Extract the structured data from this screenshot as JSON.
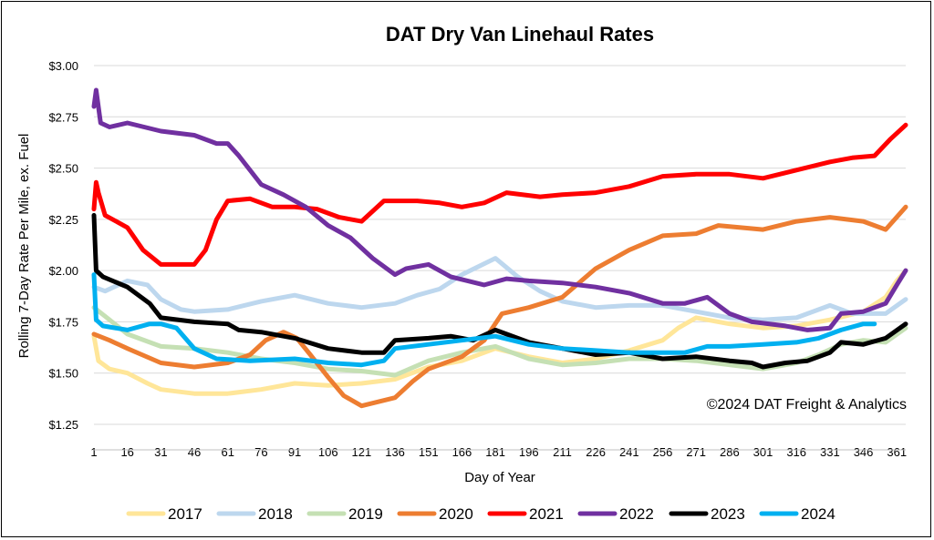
{
  "chart_data": {
    "type": "line",
    "title": "DAT Dry Van Linehaul Rates",
    "xlabel": "Day of Year",
    "ylabel": "Rolling 7-Day Rate Per Mile, ex. Fuel",
    "annotation": "©2024 DAT Freight & Analytics",
    "xlim": [
      1,
      365
    ],
    "ylim": [
      1.25,
      3.0
    ],
    "x_ticks": [
      1,
      16,
      31,
      46,
      61,
      76,
      91,
      106,
      121,
      136,
      151,
      166,
      181,
      196,
      211,
      226,
      241,
      256,
      271,
      286,
      301,
      316,
      331,
      346,
      361
    ],
    "y_ticks": [
      {
        "value": 1.25,
        "label": "$1.25"
      },
      {
        "value": 1.5,
        "label": "$1.50"
      },
      {
        "value": 1.75,
        "label": "$1.75"
      },
      {
        "value": 2.0,
        "label": "$2.00"
      },
      {
        "value": 2.25,
        "label": "$2.25"
      },
      {
        "value": 2.5,
        "label": "$2.50"
      },
      {
        "value": 2.75,
        "label": "$2.75"
      },
      {
        "value": 3.0,
        "label": "$3.00"
      }
    ],
    "grid": "horizontal",
    "legend_position": "bottom",
    "series": [
      {
        "name": "2017",
        "color": "#ffe699",
        "points": [
          [
            1,
            1.68
          ],
          [
            3,
            1.56
          ],
          [
            8,
            1.52
          ],
          [
            16,
            1.5
          ],
          [
            25,
            1.45
          ],
          [
            31,
            1.42
          ],
          [
            46,
            1.4
          ],
          [
            61,
            1.4
          ],
          [
            76,
            1.42
          ],
          [
            91,
            1.45
          ],
          [
            106,
            1.44
          ],
          [
            121,
            1.45
          ],
          [
            136,
            1.47
          ],
          [
            151,
            1.53
          ],
          [
            166,
            1.56
          ],
          [
            181,
            1.62
          ],
          [
            196,
            1.58
          ],
          [
            211,
            1.55
          ],
          [
            226,
            1.57
          ],
          [
            241,
            1.61
          ],
          [
            256,
            1.66
          ],
          [
            263,
            1.72
          ],
          [
            271,
            1.77
          ],
          [
            286,
            1.74
          ],
          [
            301,
            1.72
          ],
          [
            316,
            1.73
          ],
          [
            331,
            1.76
          ],
          [
            346,
            1.8
          ],
          [
            356,
            1.87
          ],
          [
            361,
            1.95
          ],
          [
            365,
            2.0
          ]
        ]
      },
      {
        "name": "2018",
        "color": "#bdd7ee",
        "points": [
          [
            1,
            1.92
          ],
          [
            6,
            1.9
          ],
          [
            16,
            1.95
          ],
          [
            25,
            1.93
          ],
          [
            31,
            1.86
          ],
          [
            40,
            1.81
          ],
          [
            46,
            1.8
          ],
          [
            61,
            1.81
          ],
          [
            76,
            1.85
          ],
          [
            91,
            1.88
          ],
          [
            106,
            1.84
          ],
          [
            121,
            1.82
          ],
          [
            136,
            1.84
          ],
          [
            146,
            1.88
          ],
          [
            156,
            1.91
          ],
          [
            166,
            1.98
          ],
          [
            181,
            2.06
          ],
          [
            191,
            1.97
          ],
          [
            201,
            1.9
          ],
          [
            211,
            1.85
          ],
          [
            226,
            1.82
          ],
          [
            241,
            1.83
          ],
          [
            256,
            1.83
          ],
          [
            271,
            1.8
          ],
          [
            286,
            1.77
          ],
          [
            301,
            1.76
          ],
          [
            316,
            1.77
          ],
          [
            331,
            1.83
          ],
          [
            341,
            1.79
          ],
          [
            356,
            1.79
          ],
          [
            365,
            1.86
          ]
        ]
      },
      {
        "name": "2019",
        "color": "#c5e0b4",
        "points": [
          [
            1,
            1.82
          ],
          [
            8,
            1.76
          ],
          [
            16,
            1.69
          ],
          [
            31,
            1.63
          ],
          [
            46,
            1.62
          ],
          [
            61,
            1.6
          ],
          [
            76,
            1.57
          ],
          [
            91,
            1.55
          ],
          [
            106,
            1.52
          ],
          [
            121,
            1.51
          ],
          [
            136,
            1.49
          ],
          [
            151,
            1.56
          ],
          [
            166,
            1.6
          ],
          [
            181,
            1.63
          ],
          [
            196,
            1.57
          ],
          [
            211,
            1.54
          ],
          [
            226,
            1.55
          ],
          [
            241,
            1.57
          ],
          [
            256,
            1.57
          ],
          [
            271,
            1.56
          ],
          [
            286,
            1.54
          ],
          [
            301,
            1.52
          ],
          [
            316,
            1.55
          ],
          [
            326,
            1.59
          ],
          [
            336,
            1.64
          ],
          [
            346,
            1.66
          ],
          [
            356,
            1.65
          ],
          [
            365,
            1.72
          ]
        ]
      },
      {
        "name": "2020",
        "color": "#ed7d31",
        "points": [
          [
            1,
            1.69
          ],
          [
            8,
            1.66
          ],
          [
            16,
            1.62
          ],
          [
            31,
            1.55
          ],
          [
            46,
            1.53
          ],
          [
            61,
            1.55
          ],
          [
            71,
            1.59
          ],
          [
            78,
            1.66
          ],
          [
            86,
            1.7
          ],
          [
            92,
            1.67
          ],
          [
            98,
            1.59
          ],
          [
            106,
            1.48
          ],
          [
            113,
            1.39
          ],
          [
            121,
            1.34
          ],
          [
            136,
            1.38
          ],
          [
            144,
            1.46
          ],
          [
            151,
            1.52
          ],
          [
            166,
            1.58
          ],
          [
            176,
            1.66
          ],
          [
            184,
            1.79
          ],
          [
            196,
            1.82
          ],
          [
            211,
            1.87
          ],
          [
            226,
            2.01
          ],
          [
            241,
            2.1
          ],
          [
            256,
            2.17
          ],
          [
            271,
            2.18
          ],
          [
            281,
            2.22
          ],
          [
            301,
            2.2
          ],
          [
            316,
            2.24
          ],
          [
            331,
            2.26
          ],
          [
            346,
            2.24
          ],
          [
            356,
            2.2
          ],
          [
            365,
            2.31
          ]
        ]
      },
      {
        "name": "2021",
        "color": "#ff0000",
        "points": [
          [
            1,
            2.3
          ],
          [
            2,
            2.43
          ],
          [
            3,
            2.38
          ],
          [
            6,
            2.27
          ],
          [
            16,
            2.21
          ],
          [
            23,
            2.1
          ],
          [
            31,
            2.03
          ],
          [
            46,
            2.03
          ],
          [
            51,
            2.1
          ],
          [
            56,
            2.25
          ],
          [
            61,
            2.34
          ],
          [
            71,
            2.35
          ],
          [
            81,
            2.31
          ],
          [
            91,
            2.31
          ],
          [
            101,
            2.3
          ],
          [
            111,
            2.26
          ],
          [
            121,
            2.24
          ],
          [
            131,
            2.34
          ],
          [
            146,
            2.34
          ],
          [
            156,
            2.33
          ],
          [
            166,
            2.31
          ],
          [
            176,
            2.33
          ],
          [
            186,
            2.38
          ],
          [
            201,
            2.36
          ],
          [
            211,
            2.37
          ],
          [
            226,
            2.38
          ],
          [
            241,
            2.41
          ],
          [
            256,
            2.46
          ],
          [
            271,
            2.47
          ],
          [
            286,
            2.47
          ],
          [
            301,
            2.45
          ],
          [
            316,
            2.49
          ],
          [
            331,
            2.53
          ],
          [
            341,
            2.55
          ],
          [
            351,
            2.56
          ],
          [
            358,
            2.64
          ],
          [
            365,
            2.71
          ]
        ]
      },
      {
        "name": "2022",
        "color": "#7030a0",
        "points": [
          [
            1,
            2.8
          ],
          [
            2,
            2.88
          ],
          [
            4,
            2.72
          ],
          [
            8,
            2.7
          ],
          [
            16,
            2.72
          ],
          [
            31,
            2.68
          ],
          [
            46,
            2.66
          ],
          [
            56,
            2.62
          ],
          [
            61,
            2.62
          ],
          [
            66,
            2.56
          ],
          [
            76,
            2.42
          ],
          [
            86,
            2.37
          ],
          [
            96,
            2.31
          ],
          [
            106,
            2.22
          ],
          [
            116,
            2.16
          ],
          [
            126,
            2.06
          ],
          [
            136,
            1.98
          ],
          [
            141,
            2.01
          ],
          [
            151,
            2.03
          ],
          [
            161,
            1.97
          ],
          [
            176,
            1.93
          ],
          [
            186,
            1.96
          ],
          [
            196,
            1.95
          ],
          [
            211,
            1.94
          ],
          [
            226,
            1.92
          ],
          [
            241,
            1.89
          ],
          [
            256,
            1.84
          ],
          [
            266,
            1.84
          ],
          [
            276,
            1.87
          ],
          [
            286,
            1.79
          ],
          [
            296,
            1.75
          ],
          [
            311,
            1.73
          ],
          [
            321,
            1.71
          ],
          [
            331,
            1.72
          ],
          [
            336,
            1.79
          ],
          [
            346,
            1.8
          ],
          [
            356,
            1.84
          ],
          [
            361,
            1.93
          ],
          [
            365,
            2.0
          ]
        ]
      },
      {
        "name": "2023",
        "color": "#000000",
        "points": [
          [
            1,
            2.27
          ],
          [
            2,
            2.0
          ],
          [
            5,
            1.97
          ],
          [
            16,
            1.92
          ],
          [
            26,
            1.84
          ],
          [
            31,
            1.77
          ],
          [
            46,
            1.75
          ],
          [
            61,
            1.74
          ],
          [
            66,
            1.71
          ],
          [
            76,
            1.7
          ],
          [
            91,
            1.67
          ],
          [
            106,
            1.62
          ],
          [
            121,
            1.6
          ],
          [
            131,
            1.6
          ],
          [
            136,
            1.66
          ],
          [
            151,
            1.67
          ],
          [
            161,
            1.68
          ],
          [
            171,
            1.66
          ],
          [
            181,
            1.71
          ],
          [
            196,
            1.65
          ],
          [
            211,
            1.62
          ],
          [
            226,
            1.59
          ],
          [
            241,
            1.6
          ],
          [
            256,
            1.57
          ],
          [
            271,
            1.58
          ],
          [
            286,
            1.56
          ],
          [
            296,
            1.55
          ],
          [
            301,
            1.53
          ],
          [
            311,
            1.55
          ],
          [
            321,
            1.56
          ],
          [
            331,
            1.6
          ],
          [
            336,
            1.65
          ],
          [
            346,
            1.64
          ],
          [
            356,
            1.67
          ],
          [
            365,
            1.74
          ]
        ]
      },
      {
        "name": "2024",
        "color": "#00b0f0",
        "points": [
          [
            1,
            1.98
          ],
          [
            2,
            1.76
          ],
          [
            5,
            1.73
          ],
          [
            16,
            1.71
          ],
          [
            26,
            1.74
          ],
          [
            31,
            1.74
          ],
          [
            38,
            1.72
          ],
          [
            46,
            1.62
          ],
          [
            56,
            1.57
          ],
          [
            71,
            1.56
          ],
          [
            91,
            1.57
          ],
          [
            106,
            1.55
          ],
          [
            121,
            1.54
          ],
          [
            131,
            1.56
          ],
          [
            136,
            1.62
          ],
          [
            151,
            1.64
          ],
          [
            166,
            1.66
          ],
          [
            181,
            1.68
          ],
          [
            196,
            1.64
          ],
          [
            211,
            1.62
          ],
          [
            226,
            1.61
          ],
          [
            241,
            1.6
          ],
          [
            256,
            1.6
          ],
          [
            266,
            1.6
          ],
          [
            276,
            1.63
          ],
          [
            286,
            1.63
          ],
          [
            301,
            1.64
          ],
          [
            316,
            1.65
          ],
          [
            326,
            1.67
          ],
          [
            336,
            1.71
          ],
          [
            346,
            1.74
          ],
          [
            351,
            1.74
          ]
        ]
      }
    ]
  }
}
